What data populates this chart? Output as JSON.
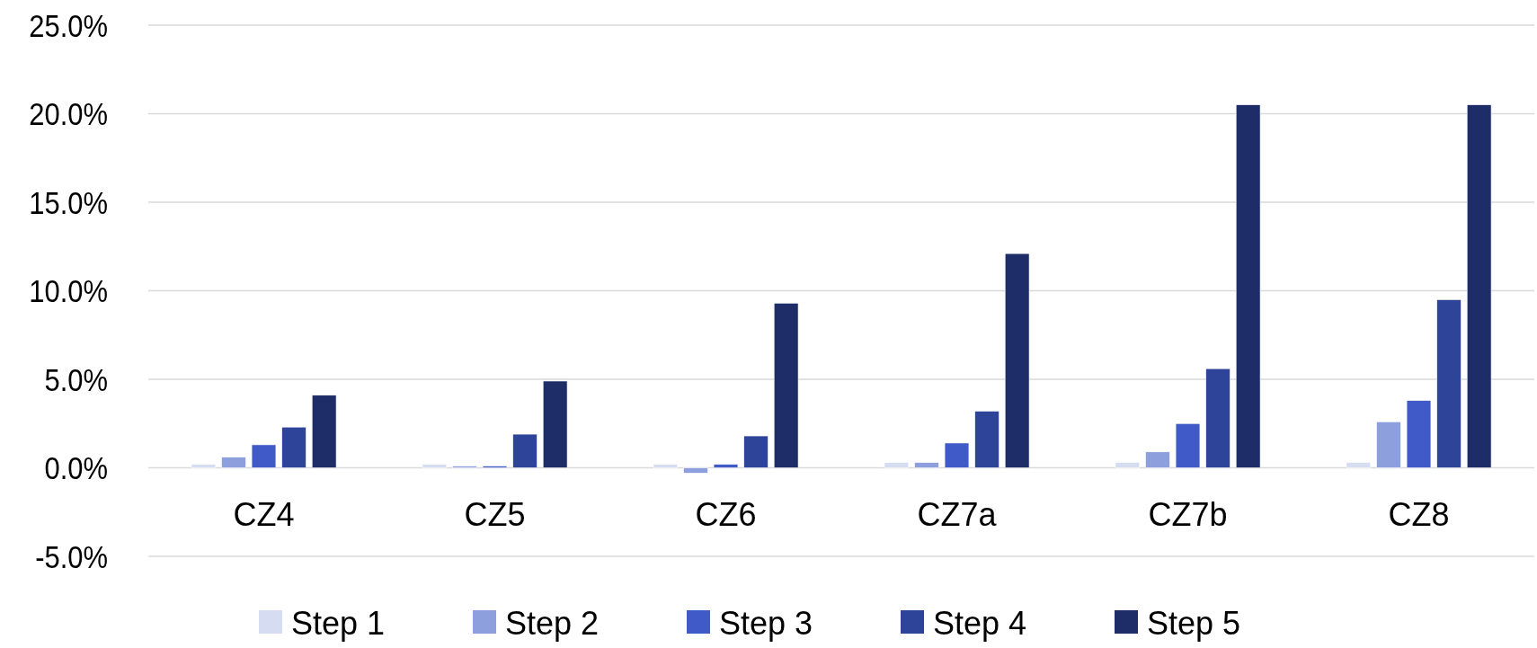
{
  "chart_data": {
    "type": "bar",
    "categories": [
      "CZ4",
      "CZ5",
      "CZ6",
      "CZ7a",
      "CZ7b",
      "CZ8"
    ],
    "series": [
      {
        "name": "Step 1",
        "color": "#d6ddf3",
        "values": [
          0.2,
          0.2,
          0.2,
          0.3,
          0.3,
          0.3
        ]
      },
      {
        "name": "Step 2",
        "color": "#8d9fdd",
        "values": [
          0.6,
          0.1,
          -0.3,
          0.3,
          0.9,
          2.6
        ]
      },
      {
        "name": "Step 3",
        "color": "#405bc8",
        "values": [
          1.3,
          0.1,
          0.2,
          1.4,
          2.5,
          3.8
        ]
      },
      {
        "name": "Step 4",
        "color": "#2d4498",
        "values": [
          2.3,
          1.9,
          1.8,
          3.2,
          5.6,
          9.5
        ]
      },
      {
        "name": "Step 5",
        "color": "#1e2d67",
        "values": [
          4.1,
          4.9,
          9.3,
          12.1,
          20.5,
          20.5
        ]
      }
    ],
    "ylim": [
      -5,
      25
    ],
    "yticks": [
      {
        "value": -5,
        "label": "-5.0%"
      },
      {
        "value": 0,
        "label": "0.0%"
      },
      {
        "value": 5,
        "label": "5.0%"
      },
      {
        "value": 10,
        "label": "10.0%"
      },
      {
        "value": 15,
        "label": "15.0%"
      },
      {
        "value": 20,
        "label": "20.0%"
      },
      {
        "value": 25,
        "label": "25.0%"
      }
    ],
    "grid": "y",
    "legend": "bottom"
  }
}
